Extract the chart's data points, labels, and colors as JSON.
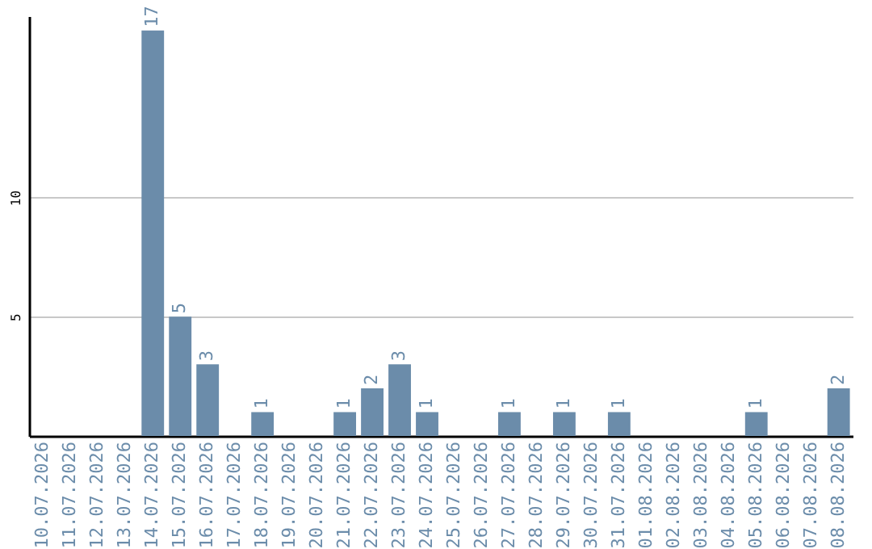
{
  "chart_data": {
    "type": "bar",
    "categories": [
      "10.07.2026",
      "11.07.2026",
      "12.07.2026",
      "13.07.2026",
      "14.07.2026",
      "15.07.2026",
      "16.07.2026",
      "17.07.2026",
      "18.07.2026",
      "19.07.2026",
      "20.07.2026",
      "21.07.2026",
      "22.07.2026",
      "23.07.2026",
      "24.07.2026",
      "25.07.2026",
      "26.07.2026",
      "27.07.2026",
      "28.07.2026",
      "29.07.2026",
      "30.07.2026",
      "31.07.2026",
      "01.08.2026",
      "02.08.2026",
      "03.08.2026",
      "04.08.2026",
      "05.08.2026",
      "06.08.2026",
      "07.08.2026",
      "08.08.2026"
    ],
    "values": [
      0,
      0,
      0,
      0,
      17,
      5,
      3,
      0,
      1,
      0,
      0,
      1,
      2,
      3,
      1,
      0,
      0,
      1,
      0,
      1,
      0,
      1,
      0,
      0,
      0,
      0,
      1,
      0,
      0,
      2
    ],
    "value_labels": [
      null,
      null,
      null,
      null,
      "17",
      "5",
      "3",
      null,
      "1",
      null,
      null,
      "1",
      "2",
      "3",
      "1",
      null,
      null,
      "1",
      null,
      "1",
      null,
      "1",
      null,
      null,
      null,
      null,
      "1",
      null,
      null,
      "2"
    ],
    "color": "#6b8caa",
    "ylim": [
      0,
      17.6
    ],
    "yticks": [
      5,
      10
    ],
    "grid": "y"
  }
}
